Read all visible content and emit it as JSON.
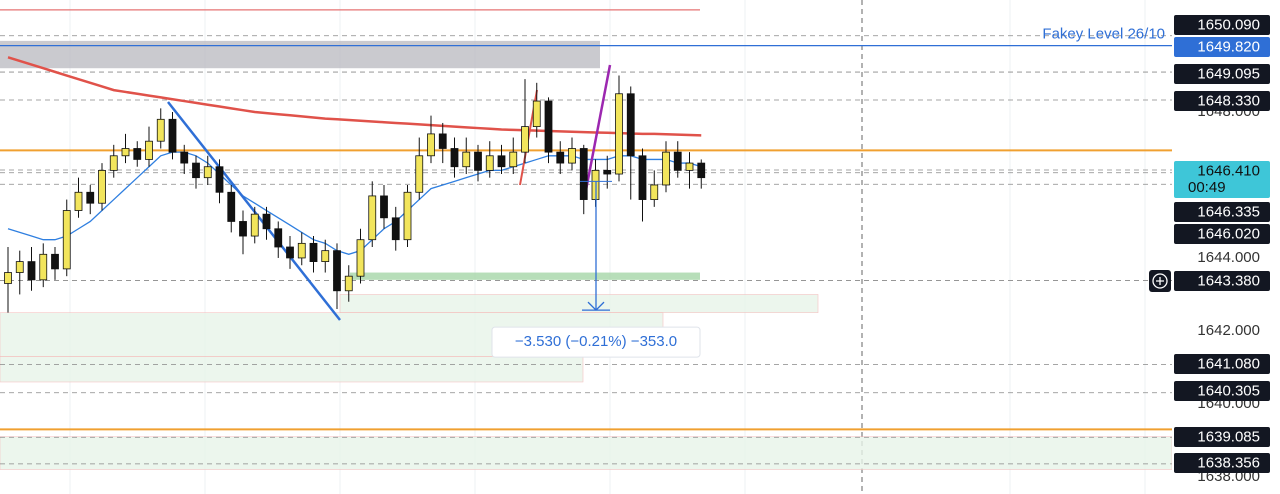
{
  "chart_data": {
    "type": "candlestick",
    "ylim": [
      1637.53,
      1651.07
    ],
    "yticks": [
      {
        "value": 1648,
        "label": "1648.000"
      },
      {
        "value": 1644,
        "label": "1644.000"
      },
      {
        "value": 1642,
        "label": "1642.000"
      },
      {
        "value": 1640,
        "label": "1640.000"
      },
      {
        "value": 1638,
        "label": "1638.000"
      }
    ],
    "up_color": "#f2e55c",
    "down_color": "#111111",
    "ma_colors": [
      "#e0524a",
      "#2f7fe0"
    ],
    "candles": [
      [
        1643.3,
        1644.3,
        1642.5,
        1643.6
      ],
      [
        1643.6,
        1644.2,
        1643.0,
        1643.9
      ],
      [
        1643.9,
        1644.3,
        1643.1,
        1643.4
      ],
      [
        1643.4,
        1644.4,
        1643.2,
        1644.1
      ],
      [
        1644.1,
        1644.3,
        1643.4,
        1643.7
      ],
      [
        1643.7,
        1645.6,
        1643.5,
        1645.3
      ],
      [
        1645.3,
        1646.2,
        1645.1,
        1645.8
      ],
      [
        1645.8,
        1646.0,
        1645.2,
        1645.5
      ],
      [
        1645.5,
        1646.6,
        1645.3,
        1646.4
      ],
      [
        1646.4,
        1647.1,
        1646.2,
        1646.8
      ],
      [
        1646.8,
        1647.4,
        1646.6,
        1647.0
      ],
      [
        1647.0,
        1647.2,
        1646.5,
        1646.7
      ],
      [
        1646.7,
        1647.6,
        1646.5,
        1647.2
      ],
      [
        1647.2,
        1648.1,
        1647.0,
        1647.8
      ],
      [
        1647.8,
        1648.0,
        1646.7,
        1646.9
      ],
      [
        1646.9,
        1647.1,
        1646.3,
        1646.6
      ],
      [
        1646.6,
        1646.8,
        1645.9,
        1646.2
      ],
      [
        1646.2,
        1646.8,
        1646.0,
        1646.5
      ],
      [
        1646.5,
        1646.7,
        1645.5,
        1645.8
      ],
      [
        1645.8,
        1646.0,
        1644.7,
        1645.0
      ],
      [
        1645.0,
        1645.3,
        1644.1,
        1644.6
      ],
      [
        1644.6,
        1645.4,
        1644.4,
        1645.2
      ],
      [
        1645.2,
        1645.4,
        1644.5,
        1644.8
      ],
      [
        1644.8,
        1645.0,
        1644.0,
        1644.3
      ],
      [
        1644.3,
        1644.6,
        1643.7,
        1644.0
      ],
      [
        1644.0,
        1644.7,
        1643.8,
        1644.4
      ],
      [
        1644.4,
        1644.6,
        1643.6,
        1643.9
      ],
      [
        1643.9,
        1644.5,
        1643.6,
        1644.2
      ],
      [
        1644.2,
        1644.4,
        1642.6,
        1643.1
      ],
      [
        1643.1,
        1643.8,
        1642.8,
        1643.5
      ],
      [
        1643.5,
        1644.8,
        1643.3,
        1644.5
      ],
      [
        1644.5,
        1646.1,
        1644.3,
        1645.7
      ],
      [
        1645.7,
        1646.0,
        1644.8,
        1645.1
      ],
      [
        1645.1,
        1645.4,
        1644.2,
        1644.5
      ],
      [
        1644.5,
        1646.0,
        1644.3,
        1645.8
      ],
      [
        1645.8,
        1647.3,
        1645.6,
        1646.8
      ],
      [
        1646.8,
        1647.9,
        1646.6,
        1647.4
      ],
      [
        1647.4,
        1647.7,
        1646.6,
        1647.0
      ],
      [
        1647.0,
        1647.3,
        1646.2,
        1646.5
      ],
      [
        1646.5,
        1647.3,
        1646.3,
        1646.9
      ],
      [
        1646.9,
        1647.1,
        1646.1,
        1646.4
      ],
      [
        1646.4,
        1647.2,
        1646.2,
        1646.8
      ],
      [
        1646.8,
        1647.1,
        1646.3,
        1646.5
      ],
      [
        1646.5,
        1647.3,
        1646.3,
        1646.9
      ],
      [
        1646.9,
        1648.9,
        1646.6,
        1647.6
      ],
      [
        1647.6,
        1648.8,
        1647.3,
        1648.3
      ],
      [
        1648.3,
        1648.4,
        1646.6,
        1646.9
      ],
      [
        1646.9,
        1647.2,
        1646.3,
        1646.6
      ],
      [
        1646.6,
        1647.3,
        1646.4,
        1647.0
      ],
      [
        1647.0,
        1647.1,
        1645.2,
        1645.6
      ],
      [
        1645.6,
        1646.7,
        1645.4,
        1646.4
      ],
      [
        1646.4,
        1646.8,
        1645.9,
        1646.3
      ],
      [
        1646.3,
        1649.0,
        1646.1,
        1648.5
      ],
      [
        1648.5,
        1648.7,
        1645.6,
        1646.8
      ],
      [
        1646.8,
        1647.0,
        1645.0,
        1645.6
      ],
      [
        1645.6,
        1646.4,
        1645.4,
        1646.0
      ],
      [
        1646.0,
        1647.2,
        1645.8,
        1646.9
      ],
      [
        1646.9,
        1647.2,
        1646.2,
        1646.4
      ],
      [
        1646.4,
        1646.9,
        1645.9,
        1646.6
      ],
      [
        1646.6,
        1646.7,
        1645.9,
        1646.2
      ]
    ],
    "moving_averages": [
      [
        1649.5,
        1649.4,
        1649.3,
        1649.2,
        1649.1,
        1649.0,
        1648.9,
        1648.8,
        1648.7,
        1648.6,
        1648.55,
        1648.5,
        1648.45,
        1648.4,
        1648.35,
        1648.3,
        1648.25,
        1648.2,
        1648.15,
        1648.1,
        1648.05,
        1648.0,
        1647.97,
        1647.94,
        1647.91,
        1647.88,
        1647.85,
        1647.82,
        1647.8,
        1647.78,
        1647.76,
        1647.74,
        1647.72,
        1647.7,
        1647.68,
        1647.66,
        1647.64,
        1647.62,
        1647.6,
        1647.58,
        1647.56,
        1647.54,
        1647.52,
        1647.51,
        1647.5,
        1647.49,
        1647.48,
        1647.47,
        1647.46,
        1647.45,
        1647.44,
        1647.43,
        1647.42,
        1647.41,
        1647.4,
        1647.4,
        1647.39,
        1647.38,
        1647.37,
        1647.36
      ],
      [
        1644.8,
        1644.7,
        1644.6,
        1644.5,
        1644.5,
        1644.6,
        1644.8,
        1645.0,
        1645.3,
        1645.6,
        1645.9,
        1646.2,
        1646.5,
        1646.8,
        1646.9,
        1646.9,
        1646.8,
        1646.6,
        1646.3,
        1646.0,
        1645.7,
        1645.5,
        1645.3,
        1645.1,
        1644.9,
        1644.7,
        1644.5,
        1644.4,
        1644.2,
        1644.1,
        1644.2,
        1644.5,
        1644.8,
        1645.0,
        1645.3,
        1645.6,
        1645.9,
        1646.0,
        1646.1,
        1646.2,
        1646.3,
        1646.4,
        1646.4,
        1646.5,
        1646.6,
        1646.7,
        1646.8,
        1646.8,
        1646.8,
        1646.7,
        1646.7,
        1646.7,
        1646.8,
        1646.8,
        1646.7,
        1646.7,
        1646.7,
        1646.6,
        1646.6,
        1646.5
      ]
    ],
    "levels": [
      {
        "value": 1650.8,
        "color": "#e57373"
      },
      {
        "value": 1649.82,
        "color": "#2f6fd6",
        "label": "Fakey Level 26/10"
      },
      {
        "value": 1646.95,
        "color": "#f0a030"
      },
      {
        "value": 1639.3,
        "color": "#f0a030"
      }
    ],
    "zones": [
      {
        "range": [
          1649.95,
          1649.2
        ],
        "color": "#bdbdc3"
      },
      {
        "range": [
          1643.6,
          1643.4
        ],
        "color": "#a5d6a7"
      },
      {
        "range": [
          1643.0,
          1642.5
        ],
        "color": "#e8f5e9"
      },
      {
        "range": [
          1642.5,
          1641.3
        ],
        "color": "#e8f5e9"
      },
      {
        "range": [
          1641.3,
          1640.6
        ],
        "color": "#e8f5e9"
      },
      {
        "range": [
          1639.1,
          1638.2
        ],
        "color": "#e8f5e9"
      }
    ],
    "measure": {
      "from": 1646.1,
      "to": 1642.57,
      "label": "−3.530 (−0.21%) −353.0"
    },
    "price_labels": [
      {
        "value": 1650.09,
        "label": "1650.090"
      },
      {
        "value": 1649.82,
        "label": "1649.820"
      },
      {
        "value": 1649.095,
        "label": "1649.095"
      },
      {
        "value": 1648.33,
        "label": "1648.330"
      },
      {
        "value": 1646.41,
        "label": "1646.410"
      },
      {
        "value": 1646.335,
        "label": "1646.335"
      },
      {
        "value": 1646.02,
        "label": "1646.020"
      },
      {
        "value": 1643.38,
        "label": "1643.380"
      },
      {
        "value": 1641.08,
        "label": "1641.080"
      },
      {
        "value": 1640.305,
        "label": "1640.305"
      },
      {
        "value": 1639.085,
        "label": "1639.085"
      },
      {
        "value": 1638.356,
        "label": "1638.356"
      }
    ],
    "countdown": "00:49"
  }
}
